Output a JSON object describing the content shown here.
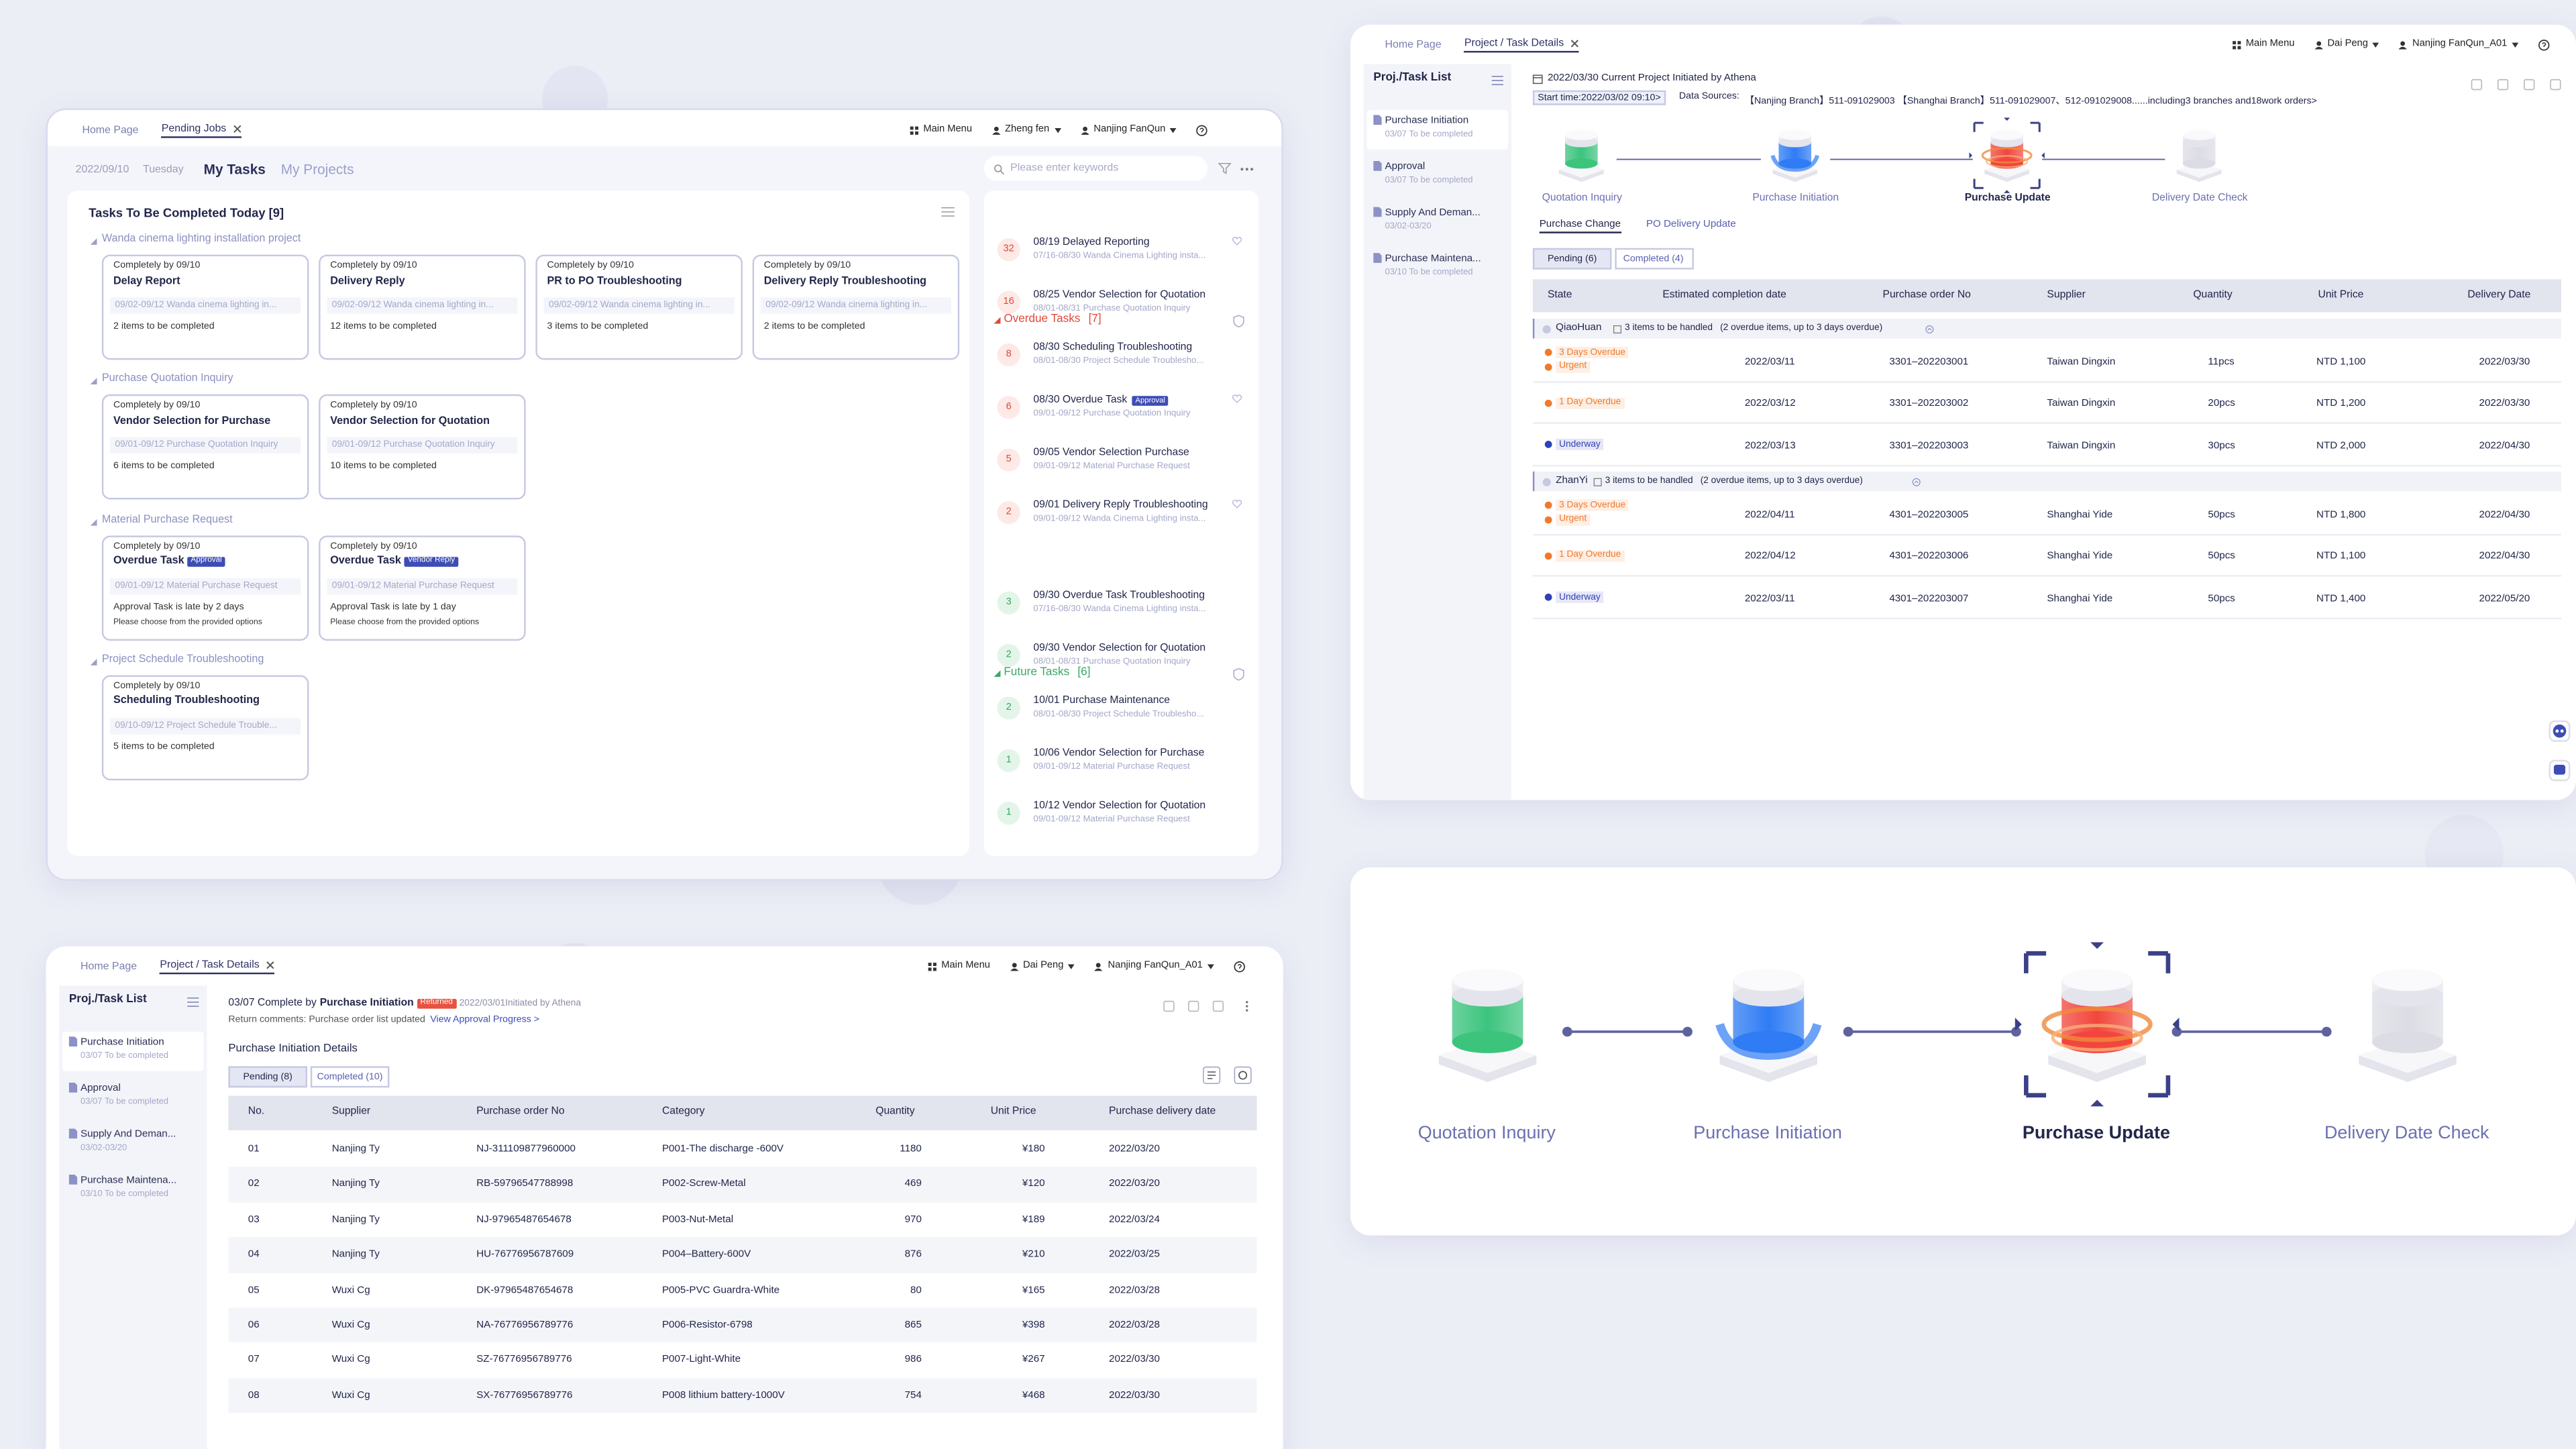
{
  "step_colors": [
    "#3cc47d",
    "#2f7cf4",
    "#f2463c",
    "#dcdde4"
  ],
  "panel1": {
    "tabs": [
      "Home Page",
      "Pending Jobs"
    ],
    "menu": [
      "Main Menu",
      "Zheng fen",
      "Nanjing FanQun"
    ],
    "date": "2022/09/10",
    "weekday": "Tuesday",
    "views": [
      "My Tasks",
      "My Projects"
    ],
    "search": "Please enter keywords",
    "today_title": "Tasks To Be Completed Today [9]",
    "groups": [
      {
        "name": "Wanda cinema lighting installation project",
        "cards": [
          {
            "due": "Completely by 09/10",
            "title": "Delay Report",
            "meta": "09/02-09/12 Wanda cinema lighting in...",
            "note": "2 items to be completed"
          },
          {
            "due": "Completely by 09/10",
            "title": "Delivery Reply",
            "meta": "09/02-09/12 Wanda cinema lighting in...",
            "note": "12 items to be completed"
          },
          {
            "due": "Completely by 09/10",
            "title": "PR to PO Troubleshooting",
            "meta": "09/02-09/12 Wanda cinema lighting in...",
            "note": "3 items to be completed"
          },
          {
            "due": "Completely by 09/10",
            "title": "Delivery Reply Troubleshooting",
            "meta": "09/02-09/12 Wanda cinema lighting in...",
            "note": "2 items to be completed"
          }
        ]
      },
      {
        "name": "Purchase Quotation Inquiry",
        "cards": [
          {
            "due": "Completely by 09/10",
            "title": "Vendor Selection for Purchase",
            "meta": "09/01-09/12 Purchase Quotation Inquiry",
            "note": "6 items to be completed"
          },
          {
            "due": "Completely by 09/10",
            "title": "Vendor Selection for Quotation",
            "meta": "09/01-09/12 Purchase Quotation Inquiry",
            "note": "10 items to be completed"
          }
        ]
      },
      {
        "name": "Material Purchase Request",
        "cards": [
          {
            "due": "Completely by 09/10",
            "title": "Overdue Task",
            "badge": "Approval",
            "meta": "09/01-09/12 Material Purchase Request",
            "note": "Approval Task is late by 2 days",
            "subnote": "Please choose from the provided options"
          },
          {
            "due": "Completely by 09/10",
            "title": "Overdue Task",
            "badge": "Vendor Reply",
            "meta": "09/01-09/12 Material Purchase Request",
            "note": "Approval Task is late by 1 day",
            "subnote": "Please choose from the provided options"
          }
        ]
      },
      {
        "name": "Project Schedule Troubleshooting",
        "cards": [
          {
            "due": "Completely by 09/10",
            "title": "Scheduling Troubleshooting",
            "meta": "09/10-09/12 Project Schedule Trouble...",
            "note": "5 items to be completed"
          }
        ]
      }
    ],
    "overdue": {
      "title": "Overdue Tasks",
      "count": "[7]",
      "items": [
        {
          "num": "32",
          "title": "08/19 Delayed Reporting",
          "meta": "07/16-08/30 Wanda Cinema Lighting insta..."
        },
        {
          "num": "16",
          "title": "08/25 Vendor Selection for Quotation",
          "meta": "08/01-08/31 Purchase Quotation Inquiry"
        },
        {
          "num": "8",
          "title": "08/30 Scheduling Troubleshooting",
          "meta": "08/01-08/30 Project Schedule Troublesho..."
        },
        {
          "num": "6",
          "title": "08/30 Overdue Task",
          "badge": "Approval",
          "meta": "09/01-09/12 Purchase Quotation Inquiry"
        },
        {
          "num": "5",
          "title": "09/05 Vendor Selection Purchase",
          "meta": "09/01-09/12 Material Purchase Request"
        },
        {
          "num": "2",
          "title": "09/01 Delivery Reply Troubleshooting",
          "meta": "09/01-09/12 Wanda Cinema Lighting insta..."
        }
      ]
    },
    "future": {
      "title": "Future Tasks",
      "count": "[6]",
      "items": [
        {
          "num": "3",
          "title": "09/30 Overdue Task Troubleshooting",
          "meta": "07/16-08/30 Wanda Cinema Lighting insta..."
        },
        {
          "num": "2",
          "title": "09/30 Vendor Selection for Quotation",
          "meta": "08/01-08/31 Purchase Quotation Inquiry"
        },
        {
          "num": "2",
          "title": "10/01 Purchase Maintenance",
          "meta": "08/01-08/30 Project Schedule Troublesho..."
        },
        {
          "num": "1",
          "title": "10/06 Vendor Selection for Purchase",
          "meta": "09/01-09/12 Material Purchase Request"
        },
        {
          "num": "1",
          "title": "10/12 Vendor Selection for Quotation",
          "meta": "09/01-09/12 Material Purchase Request"
        }
      ]
    }
  },
  "panel2": {
    "tabs": [
      "Home Page",
      "Project / Task Details"
    ],
    "menu": [
      "Main Menu",
      "Dai Peng",
      "Nanjing FanQun_A01"
    ],
    "list_title": "Proj./Task List",
    "list": [
      {
        "title": "Purchase Initiation",
        "sub": "03/07 To be completed"
      },
      {
        "title": "Approval",
        "sub": "03/07 To be completed"
      },
      {
        "title": "Supply And Deman...",
        "sub": "03/02-03/20"
      },
      {
        "title": "Purchase Maintena...",
        "sub": "03/10 To be completed"
      }
    ],
    "header": "2022/03/30 Current Project Initiated by Athena",
    "start": "Start time:2022/03/02 09:10>",
    "sources_label": "Data Sources:",
    "sources": "【Nanjing Branch】511-091029003 【Shanghai Branch】511-091029007、512-091029008......including3 branches and18work orders>",
    "steps": [
      "Quotation Inquiry",
      "Purchase Initiation",
      "Purchase Update",
      "Delivery Date Check"
    ],
    "active_step": 2,
    "views": [
      "Purchase Change",
      "PO Delivery Update"
    ],
    "filters": [
      "Pending (6)",
      "Completed (4)"
    ],
    "columns": [
      "State",
      "Estimated completion date",
      "Purchase order No",
      "Supplier",
      "Quantity",
      "Unit Price",
      "Delivery Date"
    ],
    "groups": [
      {
        "owner": "QiaoHuan",
        "count": "3 items to be handled",
        "detail": "(2 overdue items, up to 3 days overdue)",
        "rows": [
          {
            "state": [
              {
                "text": "3 Days Overdue",
                "color": "#f07a2c"
              },
              {
                "text": "Urgent",
                "color": "#f07a2c"
              }
            ],
            "cells": [
              "2022/03/11",
              "3301–202203001",
              "Taiwan Dingxin",
              "11pcs",
              "NTD 1,100",
              "2022/03/30"
            ]
          },
          {
            "state": [
              {
                "text": "1 Day  Overdue",
                "color": "#f07a2c"
              }
            ],
            "cells": [
              "2022/03/12",
              "3301–202203002",
              "Taiwan Dingxin",
              "20pcs",
              "NTD 1,200",
              "2022/03/30"
            ]
          },
          {
            "state": [
              {
                "text": "Underway",
                "color": "#3040b8"
              }
            ],
            "cells": [
              "2022/03/13",
              "3301–202203003",
              "Taiwan Dingxin",
              "30pcs",
              "NTD 2,000",
              "2022/04/30"
            ]
          }
        ]
      },
      {
        "owner": "ZhanYi",
        "count": "3 items to be handled",
        "detail": "(2 overdue items, up to 3 days overdue)",
        "rows": [
          {
            "state": [
              {
                "text": "3 Days Overdue",
                "color": "#f07a2c"
              },
              {
                "text": "Urgent",
                "color": "#f07a2c"
              }
            ],
            "cells": [
              "2022/04/11",
              "4301–202203005",
              "Shanghai Yide",
              "50pcs",
              "NTD 1,800",
              "2022/04/30"
            ]
          },
          {
            "state": [
              {
                "text": "1 Day  Overdue",
                "color": "#f07a2c"
              }
            ],
            "cells": [
              "2022/04/12",
              "4301–202203006",
              "Shanghai Yide",
              "50pcs",
              "NTD 1,100",
              "2022/04/30"
            ]
          },
          {
            "state": [
              {
                "text": "Underway",
                "color": "#3040b8"
              }
            ],
            "cells": [
              "2022/03/11",
              "4301–202203007",
              "Shanghai Yide",
              "50pcs",
              "NTD 1,400",
              "2022/05/20"
            ]
          }
        ]
      }
    ]
  },
  "panel3": {
    "tabs": [
      "Home Page",
      "Project / Task Details"
    ],
    "menu": [
      "Main Menu",
      "Dai Peng",
      "Nanjing FanQun_A01"
    ],
    "list_title": "Proj./Task List",
    "list": [
      {
        "title": "Purchase Initiation",
        "sub": "03/07 To be completed"
      },
      {
        "title": "Approval",
        "sub": "03/07 To be completed"
      },
      {
        "title": "Supply And Deman...",
        "sub": "03/02-03/20"
      },
      {
        "title": "Purchase Maintena...",
        "sub": "03/10 To be completed"
      }
    ],
    "heading": {
      "prefix": "03/07 Complete by",
      "step": "Purchase Initiation",
      "badge": "Returned",
      "meta": "2022/03/01Initiated by Athena"
    },
    "comment": "Return comments: Purchase order list updated",
    "link": "View Approval Progress >",
    "section": "Purchase Initiation Details",
    "filters": [
      "Pending (8)",
      "Completed (10)"
    ],
    "columns": [
      "No.",
      "Supplier",
      "Purchase order No",
      "Category",
      "Quantity",
      "Unit Price",
      "Purchase delivery date"
    ],
    "rows": [
      [
        "01",
        "Nanjing Ty",
        "NJ-311109877960000",
        "P001-The discharge -600V",
        "1180",
        "¥180",
        "2022/03/20"
      ],
      [
        "02",
        "Nanjing Ty",
        "RB-59796547788998",
        "P002-Screw-Metal",
        "469",
        "¥120",
        "2022/03/20"
      ],
      [
        "03",
        "Nanjing Ty",
        "NJ-97965487654678",
        "P003-Nut-Metal",
        "970",
        "¥189",
        "2022/03/24"
      ],
      [
        "04",
        "Nanjing Ty",
        "HU-76776956787609",
        "P004–Battery-600V",
        "876",
        "¥210",
        "2022/03/25"
      ],
      [
        "05",
        "Wuxi Cg",
        "DK-97965487654678",
        "P005-PVC Guardra-White",
        "80",
        "¥165",
        "2022/03/28"
      ],
      [
        "06",
        "Wuxi Cg",
        "NA-76776956789776",
        "P006-Resistor-6798",
        "865",
        "¥398",
        "2022/03/28"
      ],
      [
        "07",
        "Wuxi Cg",
        "SZ-76776956789776",
        "P007-Light-White",
        "986",
        "¥267",
        "2022/03/30"
      ],
      [
        "08",
        "Wuxi Cg",
        "SX-76776956789776",
        "P008 lithium battery-1000V",
        "754",
        "¥468",
        "2022/03/30"
      ]
    ]
  },
  "panel4": {
    "steps": [
      "Quotation Inquiry",
      "Purchase Initiation",
      "Purchase Update",
      "Delivery Date Check"
    ],
    "active_step": 2
  }
}
